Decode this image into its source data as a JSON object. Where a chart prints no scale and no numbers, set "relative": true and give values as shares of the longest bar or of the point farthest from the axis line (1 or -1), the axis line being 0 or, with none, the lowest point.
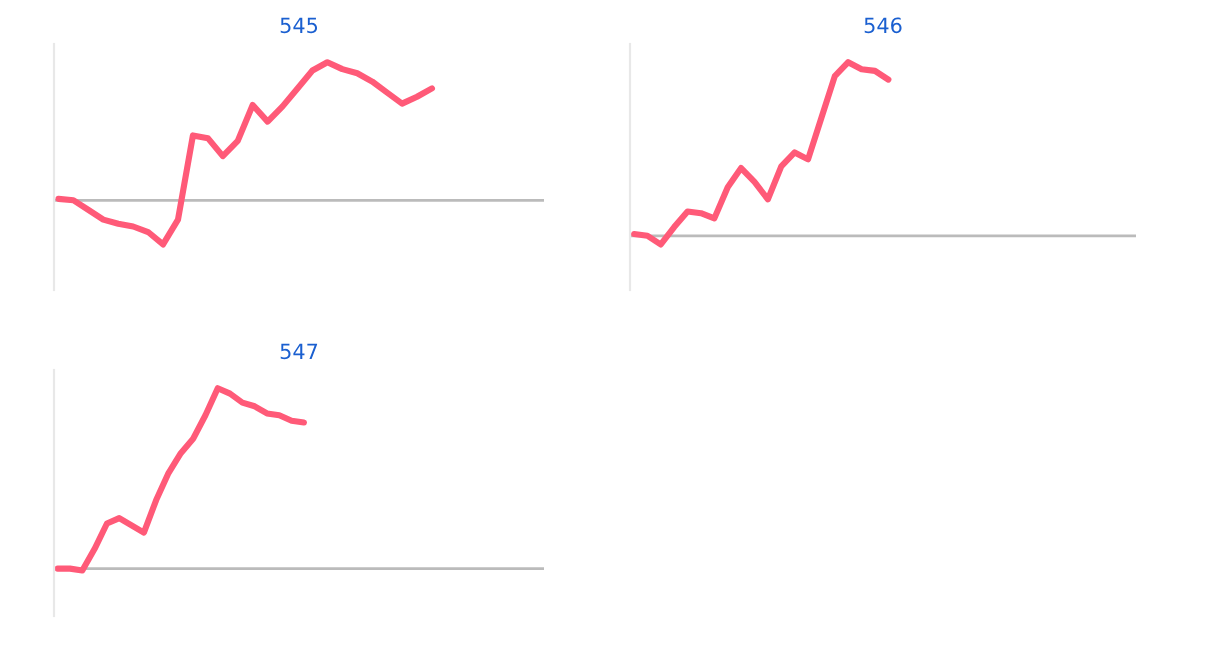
{
  "chart_data": [
    {
      "type": "line",
      "title": "545",
      "relative": true,
      "marker": "none",
      "line_style": "solid",
      "categories": [
        null,
        null,
        null,
        null,
        null,
        null,
        null,
        null,
        null,
        null,
        null,
        null,
        null,
        null,
        null,
        null,
        null,
        null,
        null,
        null,
        null,
        null,
        null,
        null,
        null,
        null,
        null,
        null,
        null,
        null,
        null,
        null,
        null
      ],
      "series": [
        {
          "color": "#ff5a78",
          "values": [
            0.01,
            0.0,
            -0.07,
            -0.14,
            -0.17,
            -0.19,
            -0.23,
            -0.32,
            -0.14,
            0.47,
            0.45,
            0.32,
            0.43,
            0.69,
            0.57,
            0.68,
            0.81,
            0.94,
            1.0,
            0.95,
            0.92,
            0.86,
            0.78,
            0.7,
            0.75,
            0.81,
            null,
            null,
            null,
            null,
            null,
            null,
            null
          ]
        }
      ]
    },
    {
      "type": "line",
      "title": "546",
      "relative": true,
      "marker": "none",
      "line_style": "solid",
      "categories": [
        null,
        null,
        null,
        null,
        null,
        null,
        null,
        null,
        null,
        null,
        null,
        null,
        null,
        null,
        null,
        null,
        null,
        null,
        null,
        null,
        null,
        null,
        null,
        null,
        null,
        null,
        null,
        null,
        null,
        null,
        null,
        null,
        null,
        null,
        null,
        null,
        null,
        null
      ],
      "series": [
        {
          "color": "#ff5a78",
          "values": [
            0.01,
            0.0,
            -0.05,
            0.05,
            0.14,
            0.13,
            0.1,
            0.28,
            0.39,
            0.31,
            0.21,
            0.4,
            0.48,
            0.44,
            0.68,
            0.92,
            1.0,
            0.96,
            0.95,
            0.9,
            null,
            null,
            null,
            null,
            null,
            null,
            null,
            null,
            null,
            null,
            null,
            null,
            null,
            null,
            null,
            null,
            null,
            null
          ]
        }
      ]
    },
    {
      "type": "line",
      "title": "547",
      "relative": true,
      "marker": "none",
      "line_style": "solid",
      "categories": [
        null,
        null,
        null,
        null,
        null,
        null,
        null,
        null,
        null,
        null,
        null,
        null,
        null,
        null,
        null,
        null,
        null,
        null,
        null,
        null,
        null,
        null,
        null,
        null,
        null,
        null,
        null,
        null,
        null,
        null,
        null,
        null,
        null,
        null,
        null,
        null,
        null,
        null,
        null,
        null
      ],
      "series": [
        {
          "color": "#ff5a78",
          "values": [
            0.0,
            0.0,
            -0.01,
            0.11,
            0.25,
            0.28,
            0.24,
            0.2,
            0.38,
            0.53,
            0.64,
            0.72,
            0.85,
            1.0,
            0.97,
            0.92,
            0.9,
            0.86,
            0.85,
            0.82,
            0.81,
            null,
            null,
            null,
            null,
            null,
            null,
            null,
            null,
            null,
            null,
            null,
            null,
            null,
            null,
            null,
            null,
            null,
            null,
            null
          ]
        }
      ]
    }
  ]
}
